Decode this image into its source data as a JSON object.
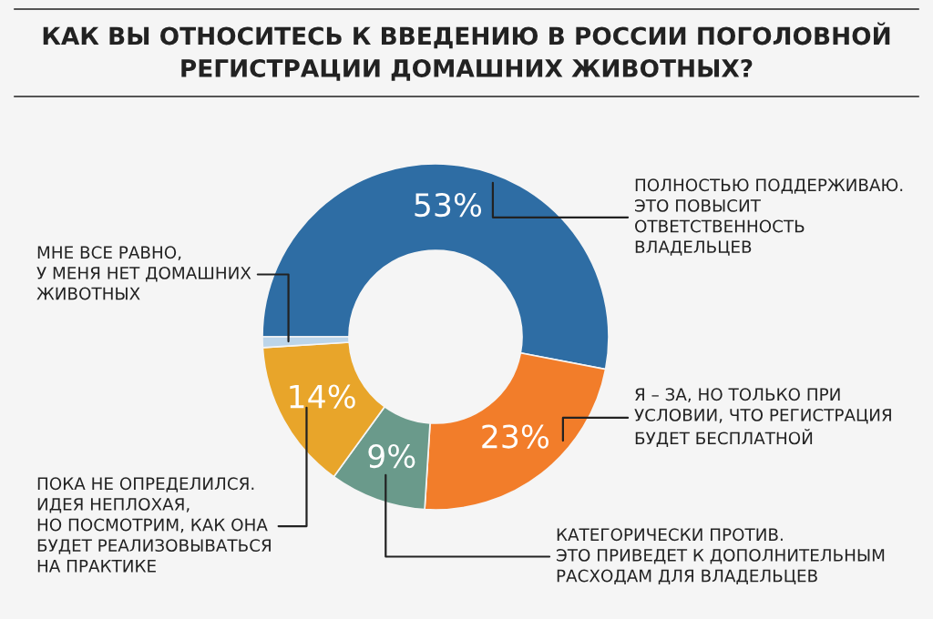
{
  "chart_data": {
    "type": "donut",
    "title": "КАК ВЫ ОТНОСИТЕСЬ К ВВЕДЕНИЮ В РОССИИ ПОГОЛОВНОЙ\nРЕГИСТРАЦИИ ДОМАШНИХ ЖИВОТНЫХ?",
    "categories": [
      "ПОЛНОСТЬЮ ПОДДЕРЖИВАЮ.\nЭТО ПОВЫСИТ\nОТВЕТСТВЕННОСТЬ\nВЛАДЕЛЬЦЕВ",
      "Я – ЗА, НО ТОЛЬКО ПРИ\nУСЛОВИИ, ЧТО РЕГИСТРАЦИЯ\nБУДЕТ БЕСПЛАТНОЙ",
      "КАТЕГОРИЧЕСКИ ПРОТИВ.\nЭТО ПРИВЕДЕТ К ДОПОЛНИТЕЛЬНЫМ\nРАСХОДАМ ДЛЯ ВЛАДЕЛЬЦЕВ",
      "ПОКА НЕ ОПРЕДЕЛИЛСЯ.\nИДЕЯ НЕПЛОХАЯ,\nНО ПОСМОТРИМ, КАК ОНА\nБУДЕТ РЕАЛИЗОВЫВАТЬСЯ\nНА ПРАКТИКЕ",
      "МНЕ ВСЕ РАВНО,\nУ МЕНЯ НЕТ ДОМАШНИХ\nЖИВОТНЫХ"
    ],
    "values": [
      53,
      23,
      9,
      14,
      1
    ],
    "colors": [
      "#2e6da4",
      "#f27d2a",
      "#6a9a8b",
      "#e8a52a",
      "#bcd5ea"
    ],
    "value_labels": [
      "53%",
      "23%",
      "9%",
      "14%",
      null
    ]
  }
}
